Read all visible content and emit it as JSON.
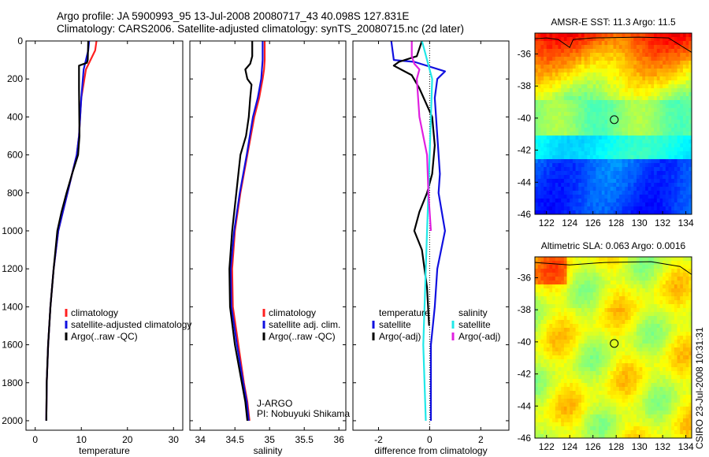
{
  "header": {
    "line1": "Argo profile: JA 5900993_95 13-Jul-2008 20080717_43 40.098S 127.831E",
    "line2": "Climatology: CARS2006. Satellite-adjusted climatology: synTS_20080715.nc (2d later)"
  },
  "side_label": "CSIRO 23-Jul-2008 10:31:31",
  "colors": {
    "climatology": "#ff2020",
    "satellite": "#1010e0",
    "argo": "#000000",
    "sat_salinity": "#20e8e8",
    "argo_salinity": "#e020e0"
  },
  "chart_data": [
    {
      "type": "line",
      "name": "temperature-profile",
      "xlabel": "temperature",
      "ylabel": "",
      "xlim": [
        -2,
        32
      ],
      "ylim": [
        2050,
        0
      ],
      "xticks": [
        0,
        10,
        20,
        30
      ],
      "xtick_labels": [
        "0",
        "10",
        "20",
        "30"
      ],
      "yticks": [
        0,
        200,
        400,
        600,
        800,
        1000,
        1200,
        1400,
        1600,
        1800,
        2000
      ],
      "ytick_labels": [
        "0",
        "200",
        "400",
        "600",
        "800",
        "1000",
        "1200",
        "1400",
        "1600",
        "1800",
        "2000"
      ],
      "legend": {
        "placement": "lower-right",
        "entries": [
          {
            "label": "climatology",
            "color_key": "climatology"
          },
          {
            "label": "satellite-adjusted climatology",
            "color_key": "satellite"
          },
          {
            "label": "Argo(..raw -QC)",
            "color_key": "argo"
          }
        ]
      },
      "series": [
        {
          "name": "climatology",
          "color_key": "climatology",
          "x": [
            13.3,
            13.0,
            12.0,
            11.0,
            10.0,
            9.5,
            9.0,
            8.0,
            7.0,
            6.0,
            5.0,
            4.0,
            3.3,
            2.8,
            2.5,
            2.4
          ],
          "y": [
            0,
            50,
            100,
            150,
            300,
            500,
            600,
            700,
            800,
            900,
            1000,
            1200,
            1400,
            1600,
            1800,
            2000
          ]
        },
        {
          "name": "satellite-adjusted climatology",
          "color_key": "satellite",
          "x": [
            11.7,
            11.5,
            11.0,
            10.5,
            10.0,
            9.5,
            9.0,
            8.0,
            7.0,
            6.0,
            5.0,
            4.0,
            3.3,
            2.8,
            2.5,
            2.4
          ],
          "y": [
            0,
            50,
            100,
            150,
            300,
            500,
            600,
            700,
            800,
            900,
            1000,
            1200,
            1400,
            1600,
            1800,
            2000
          ]
        },
        {
          "name": "Argo(..raw -QC)",
          "color_key": "argo",
          "x": [
            11.5,
            11.4,
            11.2,
            9.5,
            9.5,
            9.6,
            9.3,
            8.0,
            6.8,
            5.7,
            4.8,
            4.0,
            3.3,
            2.8,
            2.5,
            2.4
          ],
          "y": [
            0,
            100,
            115,
            130,
            250,
            500,
            600,
            700,
            800,
            900,
            1000,
            1200,
            1400,
            1600,
            1800,
            2000
          ]
        }
      ]
    },
    {
      "type": "line",
      "name": "salinity-profile",
      "xlabel": "salinity",
      "ylabel": "",
      "xlim": [
        33.85,
        36.1
      ],
      "ylim": [
        2050,
        0
      ],
      "xticks": [
        34,
        34.5,
        35,
        35.5,
        36
      ],
      "xtick_labels": [
        "34",
        "34.5",
        "35",
        "35.5",
        "36"
      ],
      "legend": {
        "placement": "lower-right",
        "entries": [
          {
            "label": "climatology",
            "color_key": "climatology"
          },
          {
            "label": "satellite adj. clim.",
            "color_key": "satellite"
          },
          {
            "label": "Argo(..raw -QC)",
            "color_key": "argo"
          }
        ]
      },
      "annotations": [
        "J-ARGO",
        "PI: Nobuyuki Shikama"
      ],
      "series": [
        {
          "name": "climatology",
          "color_key": "climatology",
          "x": [
            34.93,
            34.93,
            34.92,
            34.9,
            34.85,
            34.78,
            34.68,
            34.58,
            34.5,
            34.46,
            34.47,
            34.55,
            34.63,
            34.68,
            34.71
          ],
          "y": [
            0,
            100,
            150,
            200,
            300,
            400,
            600,
            800,
            1000,
            1200,
            1400,
            1600,
            1800,
            1900,
            2000
          ]
        },
        {
          "name": "satellite adj. clim.",
          "color_key": "satellite",
          "x": [
            34.9,
            34.9,
            34.88,
            34.83,
            34.76,
            34.67,
            34.57,
            34.49,
            34.44,
            34.45,
            34.53,
            34.62,
            34.67,
            34.7
          ],
          "y": [
            0,
            100,
            200,
            300,
            400,
            600,
            800,
            1000,
            1200,
            1400,
            1600,
            1800,
            1900,
            2000
          ]
        },
        {
          "name": "Argo(..raw -QC)",
          "color_key": "argo",
          "x": [
            34.75,
            34.75,
            34.72,
            34.65,
            34.68,
            34.74,
            34.72,
            34.7,
            34.66,
            34.58,
            34.52,
            34.46,
            34.42,
            34.43,
            34.5,
            34.6,
            34.65,
            34.68
          ],
          "y": [
            0,
            80,
            120,
            150,
            200,
            230,
            300,
            400,
            500,
            600,
            800,
            1000,
            1200,
            1400,
            1600,
            1800,
            1900,
            2000
          ]
        }
      ]
    },
    {
      "type": "line",
      "name": "difference-profile",
      "xlabel": "difference from climatology",
      "ylabel": "",
      "xlim": [
        -3,
        3.1
      ],
      "ylim": [
        2050,
        0
      ],
      "xticks": [
        -2,
        0,
        2
      ],
      "xtick_labels": [
        "-2",
        "0",
        "2"
      ],
      "zero_line": true,
      "legend": {
        "placement": "lower-center",
        "columns": [
          {
            "heading": "temperature",
            "entries": [
              {
                "label": "satellite",
                "color_key": "satellite"
              },
              {
                "label": "Argo(-adj)",
                "color_key": "argo"
              }
            ]
          },
          {
            "heading": "salinity",
            "entries": [
              {
                "label": "satellite",
                "color_key": "sat_salinity"
              },
              {
                "label": "Argo(-adj)",
                "color_key": "argo_salinity"
              }
            ]
          }
        ]
      },
      "series": [
        {
          "name": "temperature satellite",
          "color_key": "satellite",
          "x": [
            -1.5,
            -1.4,
            -0.6,
            0.6,
            0.3,
            0.2,
            0.3,
            0.4,
            0.35,
            0.6,
            0.3,
            0.2,
            0.05,
            0.05,
            0.05
          ],
          "y": [
            0,
            100,
            110,
            160,
            200,
            300,
            500,
            700,
            800,
            1000,
            1200,
            1400,
            1600,
            1800,
            2000
          ]
        },
        {
          "name": "temperature Argo(-adj)",
          "color_key": "argo",
          "x": [
            -0.3,
            -0.5,
            -1.2,
            -1.4,
            -0.7,
            -0.4,
            0.1,
            0.2,
            0.1,
            -0.1,
            -0.4,
            -0.6,
            -0.3,
            -0.1,
            -0.02
          ],
          "y": [
            0,
            80,
            110,
            130,
            180,
            250,
            400,
            550,
            700,
            800,
            900,
            1000,
            1100,
            1300,
            1500
          ]
        },
        {
          "name": "salinity satellite",
          "color_key": "sat_salinity",
          "x": [
            -0.3,
            -0.2,
            -0.1,
            0.1,
            0.05,
            0.0,
            -0.05,
            -0.1,
            -0.15,
            -0.2,
            -0.25,
            -0.15
          ],
          "y": [
            0,
            50,
            100,
            200,
            400,
            600,
            800,
            1000,
            1200,
            1400,
            1600,
            2000
          ]
        },
        {
          "name": "salinity Argo(-adj)",
          "color_key": "argo_salinity",
          "x": [
            -0.7,
            -0.7,
            -0.6,
            -0.4,
            -0.5,
            -0.4,
            -0.1,
            -0.05,
            0.05
          ],
          "y": [
            0,
            80,
            120,
            150,
            200,
            400,
            600,
            800,
            1000
          ]
        }
      ]
    },
    {
      "type": "heatmap",
      "name": "sst-map",
      "title": "AMSR-E SST: 11.3 Argo: 11.5",
      "xlim": [
        121,
        134.5
      ],
      "ylim": [
        -46,
        -34.7
      ],
      "xticks": [
        122,
        124,
        126,
        128,
        130,
        132,
        134
      ],
      "xtick_labels": [
        "122",
        "124",
        "126",
        "128",
        "130",
        "132",
        "134"
      ],
      "yticks": [
        -36,
        -38,
        -40,
        -42,
        -44,
        -46
      ],
      "ytick_labels": [
        "-36",
        "-38",
        "-40",
        "-42",
        "-44",
        "-46"
      ],
      "marker": {
        "lon": 127.831,
        "lat": -40.098
      },
      "colormap": "jet"
    },
    {
      "type": "heatmap",
      "name": "sla-map",
      "title": "Altimetric SLA: 0.063 Argo: 0.0016",
      "xlim": [
        121,
        134.5
      ],
      "ylim": [
        -46,
        -34.7
      ],
      "xticks": [
        122,
        124,
        126,
        128,
        130,
        132,
        134
      ],
      "xtick_labels": [
        "122",
        "124",
        "126",
        "128",
        "130",
        "132",
        "134"
      ],
      "yticks": [
        -36,
        -38,
        -40,
        -42,
        -44,
        -46
      ],
      "ytick_labels": [
        "-36",
        "-38",
        "-40",
        "-42",
        "-44",
        "-46"
      ],
      "marker": {
        "lon": 127.831,
        "lat": -40.098
      },
      "colormap": "jet"
    }
  ]
}
